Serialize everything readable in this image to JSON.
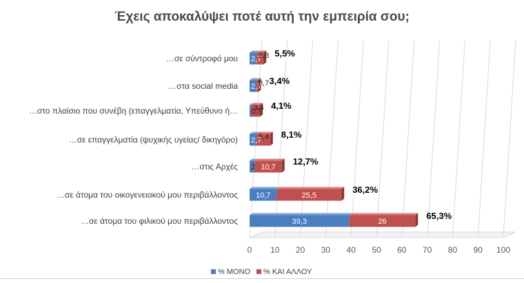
{
  "chart_data": {
    "type": "bar",
    "orientation": "horizontal",
    "stacked": true,
    "title": "Έχεις αποκαλύψει ποτέ αυτή την εμπειρία σου;",
    "categories": [
      "…σε σύντροφό μου",
      "…στα social media",
      "…στο πλαίσιο που συνέβη (επαγγελματία, Υπεύθυνο ή…",
      "…σε επαγγελματία (ψυχικής υγείας/ δικηγόρο)",
      "…στις Αρχές",
      "…σε άτομα του οικογενειακού μου περιβάλλοντος",
      "…σε άτομα του φιλικού μου περιβάλλοντος"
    ],
    "series": [
      {
        "name": "% ΜΟΝΟ",
        "color": "#4a7ebf",
        "values": [
          2.7,
          2.7,
          0.7,
          2.7,
          2,
          10.7,
          39.3
        ],
        "labels": [
          "2,7",
          "2,7",
          "0,7",
          "2,7",
          "2",
          "10,7",
          "39,3"
        ]
      },
      {
        "name": "% ΚΑΙ ΑΛΛΟΥ",
        "color": "#c0504d",
        "values": [
          2.8,
          0.7,
          3.4,
          5.4,
          10.7,
          25.5,
          26
        ],
        "labels": [
          "2,8",
          "0,7",
          "3,4",
          "5,4",
          "10,7",
          "25,5",
          "26"
        ]
      }
    ],
    "totals": [
      "5,5%",
      "3,4%",
      "4,1%",
      "8,1%",
      "12,7%",
      "36,2%",
      "65,3%"
    ],
    "xlim": [
      0,
      100
    ],
    "xticks": [
      "0",
      "10",
      "20",
      "30",
      "40",
      "50",
      "60",
      "70",
      "80",
      "90",
      "100"
    ],
    "grid": true,
    "legend_position": "bottom"
  }
}
